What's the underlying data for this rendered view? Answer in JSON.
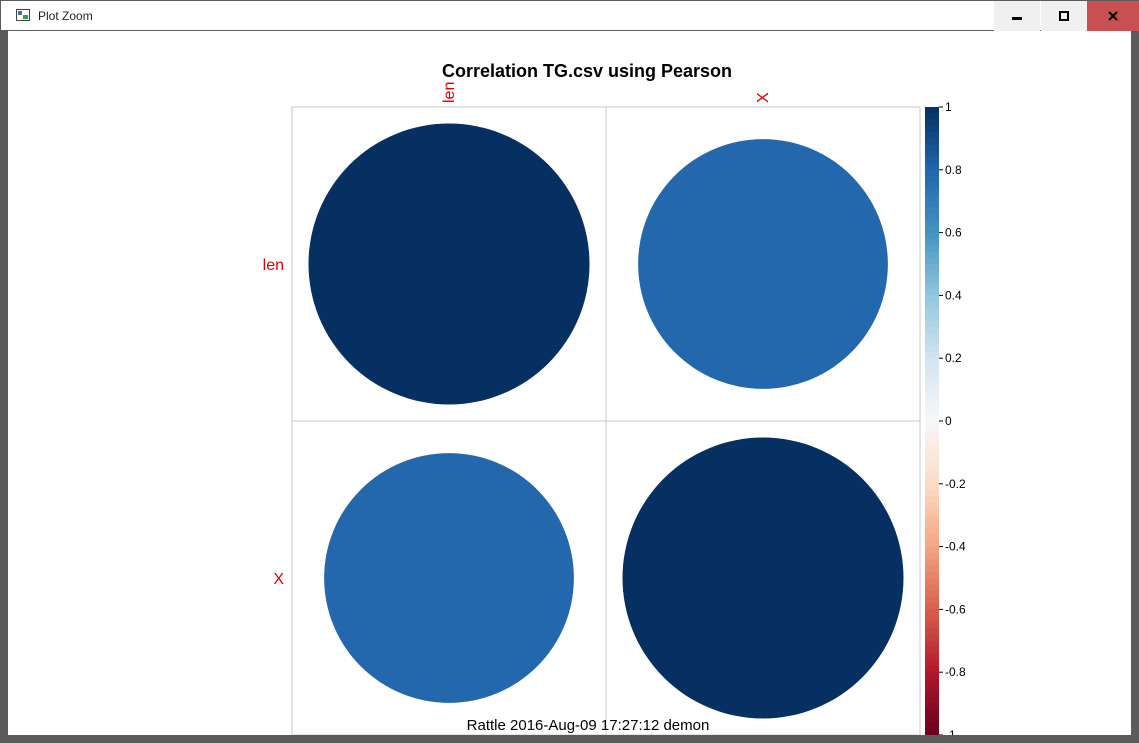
{
  "window": {
    "title": "Plot Zoom",
    "controls": {
      "minimize": "minimize",
      "maximize": "maximize",
      "close": "close"
    }
  },
  "colors": {
    "title_bar_bg": "#ffffff",
    "frame": "#5b5b5b",
    "close_button": "#c75050",
    "label_red": "#e00000",
    "dark_blue": "#083160",
    "light_blue": "#4393c3"
  },
  "chart_data": {
    "type": "heatmap",
    "title": "Correlation TG.csv using Pearson",
    "subtitle": "Rattle 2016-Aug-09 17:27:12 demon",
    "variables": [
      "len",
      "X"
    ],
    "matrix": [
      [
        1.0,
        0.79
      ],
      [
        0.79,
        1.0
      ]
    ],
    "colorbar": {
      "min": -1,
      "max": 1,
      "ticks": [
        "1",
        "0.8",
        "0.6",
        "0.4",
        "0.2",
        "0",
        "-0.2",
        "-0.4",
        "-0.6",
        "-0.8",
        "-1"
      ]
    },
    "method": "circle",
    "grid": true
  }
}
